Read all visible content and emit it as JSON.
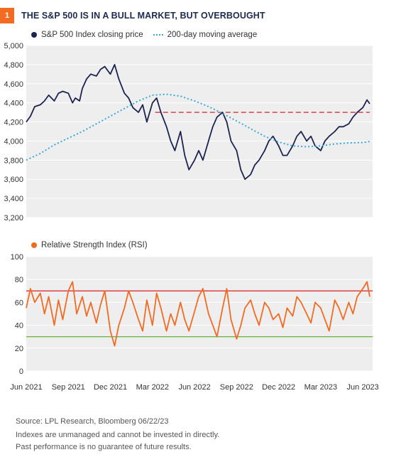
{
  "header": {
    "badge": "1",
    "title": "THE S&P 500 IS IN A BULL MARKET, BUT OVERBOUGHT"
  },
  "footer": {
    "source": "Source: LPL Research, Bloomberg  06/22/23",
    "note1": "Indexes are unmanaged and cannot be invested in directly.",
    "note2": "Past performance is no guarantee of future results."
  },
  "colors": {
    "navy": "#1c2350",
    "blue_dotted": "#3aa9d6",
    "orange": "#f26b21",
    "red": "#d9323a",
    "green": "#6fb644",
    "panel_bg": "#eeeeee"
  },
  "chart_data": [
    {
      "type": "line",
      "title": "",
      "ylim": [
        3200,
        5000
      ],
      "yticks": [
        "3,200",
        "3,400",
        "3,600",
        "3,800",
        "4,000",
        "4,200",
        "4,400",
        "4,600",
        "4,800",
        "5,000"
      ],
      "ytick_values": [
        3200,
        3400,
        3600,
        3800,
        4000,
        4200,
        4400,
        4600,
        4800,
        5000
      ],
      "xlim": [
        0,
        24.7
      ],
      "legend": [
        "S&P 500 Index closing price",
        "200-day moving average"
      ],
      "reference_line": {
        "value": 4300,
        "start_x": 9.2,
        "style": "dashed",
        "color": "red"
      },
      "series": [
        {
          "name": "S&P 500 Index closing price",
          "style": "solid",
          "x": [
            0,
            0.3,
            0.6,
            1,
            1.3,
            1.6,
            2,
            2.3,
            2.6,
            3,
            3.3,
            3.5,
            3.8,
            4,
            4.3,
            4.6,
            5,
            5.3,
            5.6,
            6,
            6.3,
            6.6,
            7,
            7.3,
            7.6,
            8,
            8.3,
            8.6,
            9,
            9.3,
            9.6,
            10,
            10.3,
            10.6,
            11,
            11.3,
            11.6,
            12,
            12.3,
            12.6,
            13,
            13.3,
            13.6,
            14,
            14.3,
            14.6,
            15,
            15.3,
            15.6,
            16,
            16.3,
            16.6,
            17,
            17.3,
            17.6,
            18,
            18.3,
            18.6,
            19,
            19.3,
            19.6,
            20,
            20.3,
            20.6,
            21,
            21.3,
            21.6,
            22,
            22.3,
            22.6,
            23,
            23.3,
            23.6,
            24,
            24.3,
            24.5
          ],
          "values": [
            4200,
            4260,
            4360,
            4380,
            4420,
            4480,
            4420,
            4500,
            4520,
            4500,
            4400,
            4450,
            4420,
            4550,
            4650,
            4700,
            4680,
            4750,
            4780,
            4700,
            4800,
            4650,
            4500,
            4450,
            4350,
            4300,
            4380,
            4200,
            4400,
            4450,
            4300,
            4150,
            4000,
            3900,
            4100,
            3850,
            3700,
            3800,
            3900,
            3800,
            4000,
            4150,
            4250,
            4300,
            4200,
            4000,
            3900,
            3700,
            3600,
            3650,
            3750,
            3800,
            3900,
            4000,
            4050,
            3950,
            3850,
            3850,
            3950,
            4050,
            4100,
            4000,
            4050,
            3950,
            3900,
            4000,
            4050,
            4100,
            4150,
            4150,
            4180,
            4250,
            4300,
            4350,
            4430,
            4390
          ]
        },
        {
          "name": "200-day moving average",
          "style": "dotted",
          "x": [
            0,
            1,
            2,
            3,
            4,
            5,
            6,
            7,
            8,
            9,
            10,
            11,
            12,
            13,
            14,
            15,
            16,
            17,
            18,
            19,
            20,
            21,
            22,
            23,
            24,
            24.5
          ],
          "values": [
            3800,
            3870,
            3960,
            4030,
            4100,
            4180,
            4260,
            4340,
            4420,
            4480,
            4490,
            4470,
            4420,
            4360,
            4290,
            4210,
            4130,
            4050,
            3990,
            3950,
            3940,
            3950,
            3970,
            3980,
            3985,
            3995
          ]
        }
      ]
    },
    {
      "type": "line",
      "title": "",
      "ylim": [
        0,
        100
      ],
      "yticks": [
        "0",
        "20",
        "40",
        "60",
        "80",
        "100"
      ],
      "ytick_values": [
        0,
        20,
        40,
        60,
        80,
        100
      ],
      "xlim": [
        0,
        24.7
      ],
      "xticks": [
        "Jun 2021",
        "Sep 2021",
        "Dec 2021",
        "Mar 2022",
        "Jun 2022",
        "Sep 2022",
        "Dec 2022",
        "Mar 2023",
        "Jun 2023"
      ],
      "xtick_values": [
        0,
        3,
        6,
        9,
        12,
        15,
        18,
        21,
        24
      ],
      "legend": [
        "Relative Strength Index (RSI)"
      ],
      "reference_lines": [
        {
          "value": 70,
          "color": "red"
        },
        {
          "value": 30,
          "color": "green"
        }
      ],
      "series": [
        {
          "name": "Relative Strength Index (RSI)",
          "x": [
            0,
            0.3,
            0.6,
            1,
            1.3,
            1.6,
            2,
            2.3,
            2.6,
            3,
            3.3,
            3.6,
            4,
            4.3,
            4.6,
            5,
            5.3,
            5.6,
            6,
            6.3,
            6.6,
            7,
            7.3,
            7.6,
            8,
            8.3,
            8.6,
            9,
            9.3,
            9.6,
            10,
            10.3,
            10.6,
            11,
            11.3,
            11.6,
            12,
            12.3,
            12.6,
            13,
            13.3,
            13.6,
            14,
            14.3,
            14.6,
            15,
            15.3,
            15.6,
            16,
            16.3,
            16.6,
            17,
            17.3,
            17.6,
            18,
            18.3,
            18.6,
            19,
            19.3,
            19.6,
            20,
            20.3,
            20.6,
            21,
            21.3,
            21.6,
            22,
            22.3,
            22.6,
            23,
            23.3,
            23.6,
            24,
            24.3,
            24.5
          ],
          "values": [
            55,
            72,
            60,
            68,
            50,
            65,
            40,
            62,
            45,
            70,
            78,
            50,
            65,
            48,
            60,
            42,
            58,
            70,
            35,
            22,
            40,
            55,
            70,
            60,
            45,
            35,
            62,
            40,
            68,
            55,
            35,
            50,
            40,
            60,
            45,
            35,
            52,
            65,
            72,
            50,
            40,
            30,
            55,
            72,
            45,
            28,
            40,
            55,
            62,
            50,
            40,
            60,
            55,
            45,
            50,
            38,
            55,
            48,
            65,
            60,
            50,
            42,
            60,
            55,
            45,
            35,
            62,
            55,
            45,
            60,
            50,
            65,
            72,
            78,
            65
          ]
        }
      ]
    }
  ]
}
